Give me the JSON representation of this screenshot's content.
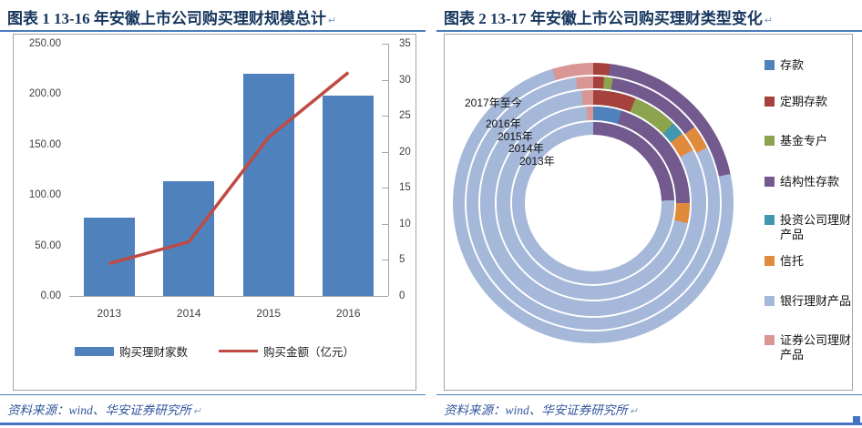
{
  "page": {
    "pilcrow": "↵",
    "figure1": {
      "title": "图表 1  13-16 年安徽上市公司购买理财规模总计",
      "source": "资料来源：wind、华安证券研究所"
    },
    "figure2": {
      "title": "图表 2  13-17 年安徽上市公司购买理财类型变化",
      "source": "资料来源：wind、华安证券研究所"
    }
  },
  "colors": {
    "title_blue": "#17375e",
    "rule_blue": "#4a7ebb",
    "page_border_blue": "#4472c4",
    "bar_blue": "#4f81bd",
    "line_red": "#bf4b44",
    "axis_gray": "#a6a6a6"
  },
  "chart_data": [
    {
      "type": "bar",
      "subtype": "combo-bar-line",
      "title": "13-16 年安徽上市公司购买理财规模总计",
      "categories": [
        "2013",
        "2014",
        "2015",
        "2016"
      ],
      "series": [
        {
          "name": "购买理财家数",
          "type": "bar",
          "axis": "left",
          "color": "#4f81bd",
          "values": [
            78,
            114,
            220,
            199
          ]
        },
        {
          "name": "购买金额（亿元）",
          "type": "line",
          "axis": "right",
          "color": "#bf4b44",
          "values": [
            4.5,
            7.5,
            22,
            31
          ]
        }
      ],
      "left_axis": {
        "min": 0,
        "max": 250,
        "step": 50,
        "labels": [
          "0.00",
          "50.00",
          "100.00",
          "150.00",
          "200.00",
          "250.00"
        ]
      },
      "right_axis": {
        "min": 0,
        "max": 35,
        "step": 5,
        "labels": [
          "0",
          "5",
          "10",
          "15",
          "20",
          "25",
          "30",
          "35"
        ]
      },
      "grid": false,
      "legend_position": "bottom"
    },
    {
      "type": "donut-multi-ring",
      "title": "13-17 年安徽上市公司购买理财类型变化",
      "categories": [
        {
          "name": "存款",
          "color": "#4f81bd"
        },
        {
          "name": "定期存款",
          "color": "#a5423d"
        },
        {
          "name": "基金专户",
          "color": "#8ca44e"
        },
        {
          "name": "结构性存款",
          "color": "#72598e"
        },
        {
          "name": "投资公司理财产品",
          "color": "#4198ae"
        },
        {
          "name": "信托",
          "color": "#e08a3c"
        },
        {
          "name": "银行理财产品",
          "color": "#a5b8d9"
        },
        {
          "name": "证券公司理财产品",
          "color": "#d99694"
        }
      ],
      "ring_labels": [
        "2017年至今",
        "2016年",
        "2015年",
        "2014年",
        "2013年"
      ],
      "rings": [
        {
          "label": "2013年",
          "segments": [
            {
              "category": "结构性存款",
              "start_deg": 0,
              "end_deg": 88
            },
            {
              "category": "银行理财产品",
              "start_deg": 88,
              "end_deg": 360
            }
          ]
        },
        {
          "label": "2014年",
          "segments": [
            {
              "category": "存款",
              "start_deg": 0,
              "end_deg": 17
            },
            {
              "category": "结构性存款",
              "start_deg": 17,
              "end_deg": 90
            },
            {
              "category": "信托",
              "start_deg": 90,
              "end_deg": 102
            },
            {
              "category": "银行理财产品",
              "start_deg": 102,
              "end_deg": 356
            },
            {
              "category": "证券公司理财产品",
              "start_deg": 356,
              "end_deg": 360
            }
          ]
        },
        {
          "label": "2015年",
          "segments": [
            {
              "category": "定期存款",
              "start_deg": 0,
              "end_deg": 22
            },
            {
              "category": "基金专户",
              "start_deg": 22,
              "end_deg": 45
            },
            {
              "category": "投资公司理财产品",
              "start_deg": 45,
              "end_deg": 52
            },
            {
              "category": "信托",
              "start_deg": 52,
              "end_deg": 62
            },
            {
              "category": "银行理财产品",
              "start_deg": 62,
              "end_deg": 354
            },
            {
              "category": "证券公司理财产品",
              "start_deg": 354,
              "end_deg": 360
            }
          ]
        },
        {
          "label": "2016年",
          "segments": [
            {
              "category": "定期存款",
              "start_deg": 0,
              "end_deg": 5
            },
            {
              "category": "基金专户",
              "start_deg": 5,
              "end_deg": 9
            },
            {
              "category": "结构性存款",
              "start_deg": 9,
              "end_deg": 53
            },
            {
              "category": "信托",
              "start_deg": 53,
              "end_deg": 64
            },
            {
              "category": "银行理财产品",
              "start_deg": 64,
              "end_deg": 352
            },
            {
              "category": "证券公司理财产品",
              "start_deg": 352,
              "end_deg": 360
            }
          ]
        },
        {
          "label": "2017年至今",
          "segments": [
            {
              "category": "定期存款",
              "start_deg": 0,
              "end_deg": 7
            },
            {
              "category": "结构性存款",
              "start_deg": 7,
              "end_deg": 78
            },
            {
              "category": "银行理财产品",
              "start_deg": 78,
              "end_deg": 343
            },
            {
              "category": "证券公司理财产品",
              "start_deg": 343,
              "end_deg": 360
            }
          ]
        }
      ],
      "legend_position": "right"
    }
  ]
}
